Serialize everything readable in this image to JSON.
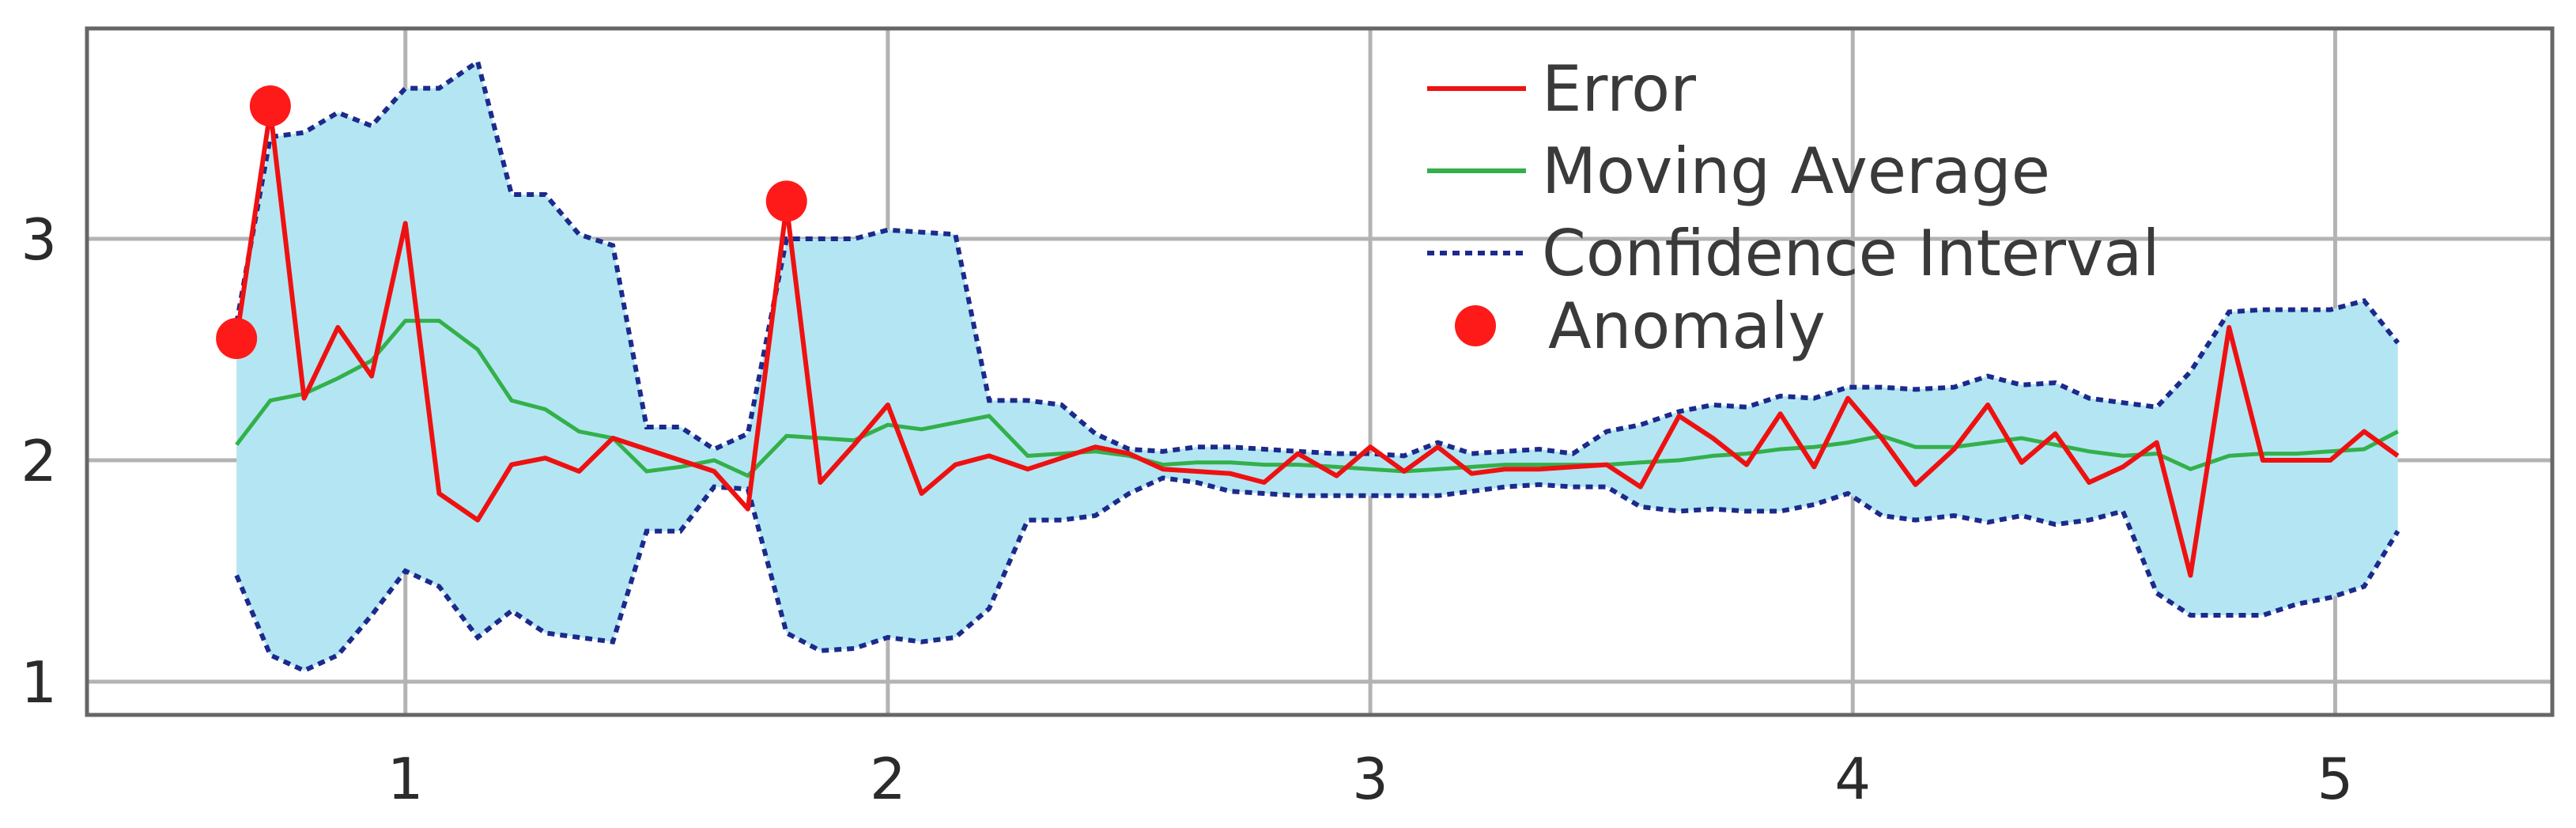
{
  "chart_data": {
    "type": "line",
    "title": "",
    "xlabel": "",
    "ylabel": "",
    "xlim": [
      0.34,
      5.45
    ],
    "ylim": [
      0.85,
      3.95
    ],
    "xticks": [
      1,
      2,
      3,
      4,
      5
    ],
    "yticks": [
      1,
      2,
      3
    ],
    "grid": true,
    "legend_position": "top-center",
    "colors": {
      "error": "#ee1111",
      "moving_average": "#33b04a",
      "confidence_interval": "#1c2a8c",
      "band_fill": "#b3e6f2",
      "anomaly": "#ff1a1a",
      "grid": "#b3b3b3",
      "frame": "#666666"
    },
    "legend": [
      {
        "key": "error",
        "label": "Error"
      },
      {
        "key": "moving_average",
        "label": "Moving Average"
      },
      {
        "key": "confidence_interval",
        "label": "Confidence Interval"
      },
      {
        "key": "anomaly",
        "label": "Anomaly"
      }
    ],
    "x": [
      0.65,
      0.72,
      0.79,
      0.86,
      0.93,
      1.0,
      1.07,
      1.15,
      1.22,
      1.29,
      1.36,
      1.43,
      1.5,
      1.57,
      1.64,
      1.71,
      1.79,
      1.86,
      1.93,
      2.0,
      2.07,
      2.14,
      2.21,
      2.29,
      2.36,
      2.43,
      2.5,
      2.57,
      2.64,
      2.71,
      2.78,
      2.85,
      2.93,
      3.0,
      3.07,
      3.14,
      3.21,
      3.28,
      3.35,
      3.42,
      3.49,
      3.56,
      3.64,
      3.71,
      3.78,
      3.85,
      3.92,
      3.99,
      4.06,
      4.13,
      4.21,
      4.28,
      4.35,
      4.42,
      4.49,
      4.56,
      4.63,
      4.7,
      4.78,
      4.85,
      4.92,
      4.99,
      5.06,
      5.13
    ],
    "series": [
      {
        "name": "Error",
        "values": [
          2.55,
          3.58,
          2.28,
          2.6,
          2.38,
          3.07,
          1.85,
          1.73,
          1.98,
          2.01,
          1.95,
          2.1,
          2.05,
          2.0,
          1.95,
          1.78,
          3.15,
          1.9,
          2.07,
          2.25,
          1.85,
          1.98,
          2.02,
          1.96,
          2.01,
          2.06,
          2.03,
          1.96,
          1.95,
          1.94,
          1.9,
          2.03,
          1.93,
          2.06,
          1.95,
          2.06,
          1.94,
          1.96,
          1.96,
          1.97,
          1.98,
          1.88,
          2.2,
          2.1,
          1.98,
          2.21,
          1.97,
          2.28,
          2.1,
          1.89,
          2.05,
          2.25,
          1.99,
          2.12,
          1.9,
          1.97,
          2.08,
          1.48,
          2.6,
          2.0,
          2.0,
          2.0,
          2.13,
          2.02
        ]
      },
      {
        "name": "Moving Average",
        "values": [
          2.07,
          2.27,
          2.3,
          2.37,
          2.45,
          2.63,
          2.63,
          2.5,
          2.27,
          2.23,
          2.13,
          2.1,
          1.95,
          1.97,
          2.0,
          1.93,
          2.11,
          2.1,
          2.09,
          2.16,
          2.14,
          2.17,
          2.2,
          2.02,
          2.03,
          2.04,
          2.02,
          1.98,
          1.99,
          1.99,
          1.98,
          1.98,
          1.97,
          1.96,
          1.95,
          1.96,
          1.97,
          1.98,
          1.98,
          1.98,
          1.98,
          1.99,
          2.0,
          2.02,
          2.03,
          2.05,
          2.06,
          2.08,
          2.11,
          2.06,
          2.06,
          2.08,
          2.1,
          2.07,
          2.04,
          2.02,
          2.03,
          1.96,
          2.02,
          2.03,
          2.03,
          2.04,
          2.05,
          2.13
        ]
      }
    ],
    "confidence_interval": {
      "name": "Confidence Interval",
      "upper": [
        2.62,
        3.46,
        3.48,
        3.57,
        3.51,
        3.68,
        3.68,
        3.8,
        3.2,
        3.2,
        3.02,
        2.97,
        2.15,
        2.15,
        2.05,
        2.12,
        3.0,
        3.0,
        3.0,
        3.04,
        3.03,
        3.02,
        2.27,
        2.27,
        2.25,
        2.12,
        2.05,
        2.04,
        2.06,
        2.06,
        2.05,
        2.04,
        2.03,
        2.03,
        2.02,
        2.08,
        2.03,
        2.04,
        2.05,
        2.03,
        2.13,
        2.16,
        2.22,
        2.25,
        2.24,
        2.29,
        2.28,
        2.33,
        2.33,
        2.32,
        2.33,
        2.38,
        2.34,
        2.35,
        2.28,
        2.26,
        2.24,
        2.4,
        2.67,
        2.68,
        2.68,
        2.68,
        2.72,
        2.53
      ],
      "lower": [
        1.48,
        1.12,
        1.05,
        1.12,
        1.3,
        1.5,
        1.43,
        1.2,
        1.32,
        1.22,
        1.2,
        1.18,
        1.68,
        1.68,
        1.88,
        1.87,
        1.22,
        1.14,
        1.15,
        1.2,
        1.18,
        1.2,
        1.33,
        1.73,
        1.73,
        1.75,
        1.85,
        1.92,
        1.9,
        1.86,
        1.85,
        1.84,
        1.84,
        1.84,
        1.84,
        1.84,
        1.86,
        1.88,
        1.89,
        1.88,
        1.88,
        1.79,
        1.77,
        1.78,
        1.77,
        1.77,
        1.8,
        1.85,
        1.75,
        1.73,
        1.75,
        1.72,
        1.75,
        1.71,
        1.73,
        1.77,
        1.4,
        1.3,
        1.3,
        1.3,
        1.35,
        1.38,
        1.43,
        1.68
      ]
    },
    "anomalies": [
      {
        "x": 0.65,
        "y": 2.55
      },
      {
        "x": 0.72,
        "y": 3.6
      },
      {
        "x": 1.79,
        "y": 3.17
      }
    ]
  }
}
